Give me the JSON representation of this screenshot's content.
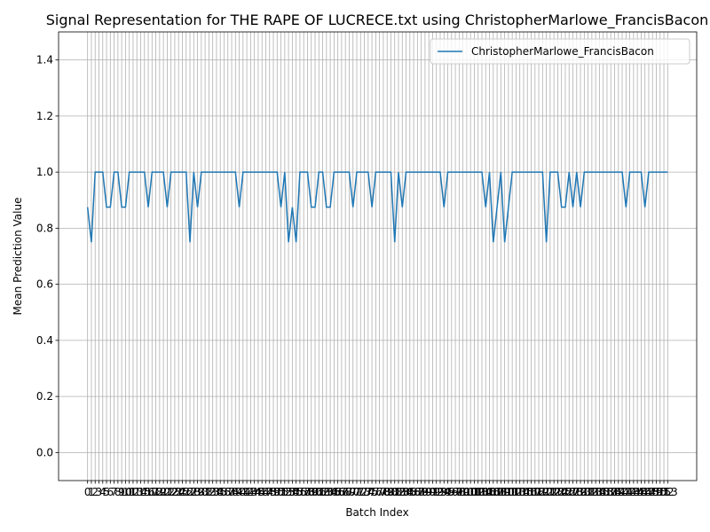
{
  "chart_data": {
    "type": "line",
    "title": "Signal Representation for THE RAPE OF LUCRECE.txt using ChristopherMarlowe_FrancisBacon",
    "xlabel": "Batch Index",
    "ylabel": "Mean Prediction Value",
    "x": [
      0,
      1,
      2,
      3,
      4,
      5,
      6,
      7,
      8,
      9,
      10,
      11,
      12,
      13,
      14,
      15,
      16,
      17,
      18,
      19,
      20,
      21,
      22,
      23,
      24,
      25,
      26,
      27,
      28,
      29,
      30,
      31,
      32,
      33,
      34,
      35,
      36,
      37,
      38,
      39,
      40,
      41,
      42,
      43,
      44,
      45,
      46,
      47,
      48,
      49,
      50,
      51,
      52,
      53,
      54,
      55,
      56,
      57,
      58,
      59,
      60,
      61,
      62,
      63,
      64,
      65,
      66,
      67,
      68,
      69,
      70,
      71,
      72,
      73,
      74,
      75,
      76,
      77,
      78,
      79,
      80,
      81,
      82,
      83,
      84,
      85,
      86,
      87,
      88,
      89,
      90,
      91,
      92,
      93,
      94,
      95,
      96,
      97,
      98,
      99,
      100,
      101,
      102,
      103,
      104,
      105,
      106,
      107,
      108,
      109,
      110,
      111,
      112,
      113,
      114,
      115,
      116,
      117,
      118,
      119,
      120,
      121,
      122,
      123,
      124,
      125,
      126,
      127,
      128,
      129,
      130,
      131,
      132,
      133,
      134,
      135,
      136,
      137,
      138,
      139,
      140,
      141,
      142,
      143,
      144,
      145,
      146,
      147,
      148,
      149,
      150,
      151,
      152,
      153
    ],
    "series": [
      {
        "name": "ChristopherMarlowe_FrancisBacon",
        "color": "#1f77b4",
        "values": [
          0.875,
          0.75,
          1,
          1,
          1,
          0.875,
          0.875,
          1,
          1,
          0.875,
          0.875,
          1,
          1,
          1,
          1,
          1,
          0.875,
          1,
          1,
          1,
          1,
          0.875,
          1,
          1,
          1,
          1,
          1,
          0.75,
          1,
          0.875,
          1,
          1,
          1,
          1,
          1,
          1,
          1,
          1,
          1,
          1,
          0.875,
          1,
          1,
          1,
          1,
          1,
          1,
          1,
          1,
          1,
          1,
          0.875,
          1,
          0.75,
          0.875,
          0.75,
          1,
          1,
          1,
          0.875,
          0.875,
          1,
          1,
          0.875,
          0.875,
          1,
          1,
          1,
          1,
          1,
          0.875,
          1,
          1,
          1,
          1,
          0.875,
          1,
          1,
          1,
          1,
          1,
          0.75,
          1,
          0.875,
          1,
          1,
          1,
          1,
          1,
          1,
          1,
          1,
          1,
          1,
          0.875,
          1,
          1,
          1,
          1,
          1,
          1,
          1,
          1,
          1,
          1,
          0.875,
          1,
          0.75,
          0.875,
          1,
          0.75,
          0.875,
          1,
          1,
          1,
          1,
          1,
          1,
          1,
          1,
          1,
          0.75,
          1,
          1,
          1,
          0.875,
          0.875,
          1,
          0.875,
          1,
          0.875,
          1,
          1,
          1,
          1,
          1,
          1,
          1,
          1,
          1,
          1,
          1,
          0.875,
          1,
          1,
          1,
          1,
          0.875,
          1,
          1,
          1,
          1,
          1,
          1
        ]
      }
    ],
    "xlim": [
      -7.65,
      160.65
    ],
    "xticks": [
      0,
      1,
      2,
      3,
      4,
      5,
      6,
      7,
      8,
      9,
      10,
      11,
      12,
      13,
      14,
      15,
      16,
      17,
      18,
      19,
      20,
      21,
      22,
      23,
      24,
      25,
      26,
      27,
      28,
      29,
      30,
      31,
      32,
      33,
      34,
      35,
      36,
      37,
      38,
      39,
      40,
      41,
      42,
      43,
      44,
      45,
      46,
      47,
      48,
      49,
      50,
      51,
      52,
      53,
      54,
      55,
      56,
      57,
      58,
      59,
      60,
      61,
      62,
      63,
      64,
      65,
      66,
      67,
      68,
      69,
      70,
      71,
      72,
      73,
      74,
      75,
      76,
      77,
      78,
      79,
      80,
      81,
      82,
      83,
      84,
      85,
      86,
      87,
      88,
      89,
      90,
      91,
      92,
      93,
      94,
      95,
      96,
      97,
      98,
      99,
      100,
      101,
      102,
      103,
      104,
      105,
      106,
      107,
      108,
      109,
      110,
      111,
      112,
      113,
      114,
      115,
      116,
      117,
      118,
      119,
      120,
      121,
      122,
      123,
      124,
      125,
      126,
      127,
      128,
      129,
      130,
      131,
      132,
      133,
      134,
      135,
      136,
      137,
      138,
      139,
      140,
      141,
      142,
      143,
      144,
      145,
      146,
      147,
      148,
      149,
      150,
      151,
      152,
      153
    ],
    "ylim": [
      -0.1,
      1.5
    ],
    "yticks": [
      {
        "value": 0,
        "label": "0.0"
      },
      0.2,
      0.4,
      0.6,
      0.8,
      {
        "value": 1,
        "label": "1.0"
      },
      1.2,
      1.4
    ],
    "grid": true,
    "legend": "upper right"
  }
}
